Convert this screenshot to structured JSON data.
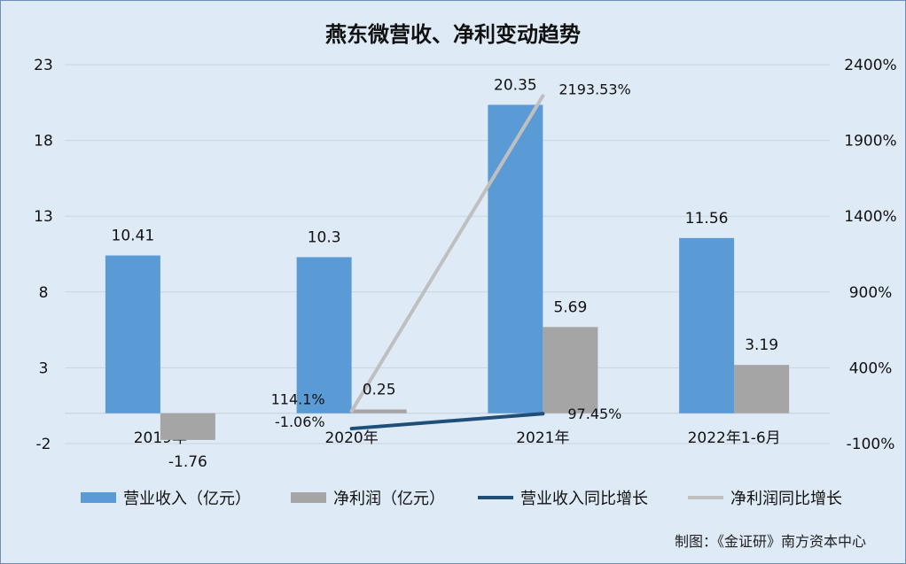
{
  "chart_data": {
    "type": "bar",
    "title": "燕东微营收、净利变动趋势",
    "categories": [
      "2019年",
      "2020年",
      "2021年",
      "2022年1-6月"
    ],
    "series": [
      {
        "name": "营业收入（亿元）",
        "type": "bar",
        "axis": "left",
        "color": "#5b9bd5",
        "values": [
          10.41,
          10.3,
          20.35,
          11.56
        ],
        "labels": [
          "10.41",
          "10.3",
          "20.35",
          "11.56"
        ]
      },
      {
        "name": "净利润（亿元）",
        "type": "bar",
        "axis": "left",
        "color": "#a5a5a5",
        "values": [
          -1.76,
          0.25,
          5.69,
          3.19
        ],
        "labels": [
          "-1.76",
          "0.25",
          "5.69",
          "3.19"
        ]
      },
      {
        "name": "营业收入同比增长",
        "type": "line",
        "axis": "right",
        "color": "#1f4e79",
        "values": [
          null,
          -1.06,
          97.45,
          null
        ],
        "labels": [
          "",
          "-1.06%",
          "97.45%",
          ""
        ]
      },
      {
        "name": "净利润同比增长",
        "type": "line",
        "axis": "right",
        "color": "#bfbfbf",
        "values": [
          null,
          114.1,
          2193.53,
          null
        ],
        "labels": [
          "",
          "114.1%",
          "2193.53%",
          ""
        ]
      }
    ],
    "y_left": {
      "min": -2,
      "max": 23,
      "ticks": [
        -2,
        3,
        8,
        13,
        18,
        23
      ]
    },
    "y_right": {
      "min": -100,
      "max": 2400,
      "ticks": [
        -100,
        400,
        900,
        1400,
        1900,
        2400
      ],
      "tick_labels": [
        "-100%",
        "400%",
        "900%",
        "1400%",
        "1900%",
        "2400%"
      ]
    },
    "grid": true,
    "legend_position": "bottom"
  },
  "footer": {
    "credit": "制图：《金证研》南方资本中心"
  }
}
